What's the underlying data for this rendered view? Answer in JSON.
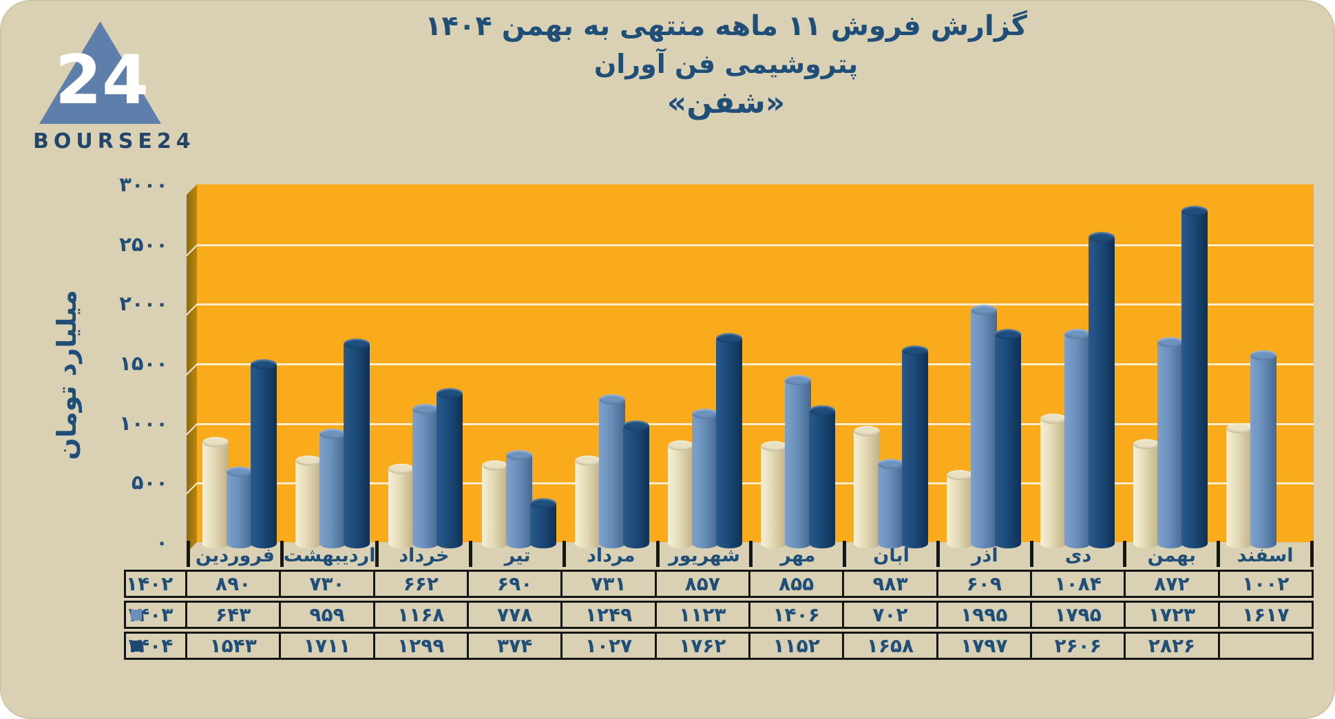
{
  "page": {
    "background": "#DAD0B3",
    "accent_orange": "#F9AB1C",
    "text_navy": "#1F4E78"
  },
  "header": {
    "logo_text": "BOURSE24",
    "logo_number": "24",
    "title_line1": "گزارش  فروش ۱۱ ماهه منتهی به بهمن ۱۴۰۴",
    "title_line2": "پتروشیمی فن آوران",
    "title_line3": "«شفن»"
  },
  "chart_data": {
    "type": "bar",
    "subtype": "3d-cylinder",
    "title": "گزارش فروش ۱۱ ماهه منتهی به بهمن ۱۴۰۴ پتروشیمی فن آوران «شفن»",
    "ylabel": "میلیارد تومان",
    "ylim": [
      0,
      3000
    ],
    "grid": true,
    "legend_position": "table-left",
    "plot_background": "#F9AB1C",
    "wall_color": "#A87C10",
    "gridline_color": "#FAF0D8",
    "y_ticks": [
      {
        "label": "۰",
        "value": 0
      },
      {
        "label": "۵۰۰",
        "value": 500
      },
      {
        "label": "۱۰۰۰",
        "value": 1000
      },
      {
        "label": "۱۵۰۰",
        "value": 1500
      },
      {
        "label": "۲۰۰۰",
        "value": 2000
      },
      {
        "label": "۲۵۰۰",
        "value": 2500
      },
      {
        "label": "۳۰۰۰",
        "value": 3000
      }
    ],
    "categories": [
      "فروردین",
      "اردیبهشت",
      "خرداد",
      "تیر",
      "مرداد",
      "شهریور",
      "مهر",
      "آبان",
      "آذر",
      "دی",
      "بهمن",
      "اسفند"
    ],
    "series": [
      {
        "name": "۱۴۰۲",
        "year": 1402,
        "legend_swatch": null,
        "body_colors": [
          "#F5F0D8",
          "#E3D9B4",
          "#BFB089"
        ],
        "top_color": "#E9E1C1",
        "values": [
          890,
          730,
          662,
          690,
          731,
          857,
          855,
          983,
          609,
          1084,
          872,
          1002
        ],
        "labels": [
          "۸۹۰",
          "۷۳۰",
          "۶۶۲",
          "۶۹۰",
          "۷۳۱",
          "۸۵۷",
          "۸۵۵",
          "۹۸۳",
          "۶۰۹",
          "۱۰۸۴",
          "۸۷۲",
          "۱۰۰۲"
        ]
      },
      {
        "name": "۱۴۰۳",
        "year": 1403,
        "legend_swatch": "#6E8FB9",
        "body_colors": [
          "#7FA0C9",
          "#6990BC",
          "#46688F"
        ],
        "top_color": "#6E93BF",
        "values": [
          643,
          959,
          1168,
          778,
          1249,
          1123,
          1406,
          702,
          1995,
          1795,
          1723,
          1617
        ],
        "labels": [
          "۶۴۳",
          "۹۵۹",
          "۱۱۶۸",
          "۷۷۸",
          "۱۲۴۹",
          "۱۱۲۳",
          "۱۴۰۶",
          "۷۰۲",
          "۱۹۹۵",
          "۱۷۹۵",
          "۱۷۲۳",
          "۱۶۱۷"
        ]
      },
      {
        "name": "۱۴۰۴",
        "year": 1404,
        "legend_swatch": "#1C4673",
        "body_colors": [
          "#2A5A8A",
          "#1C4A7A",
          "#0F3154"
        ],
        "top_color": "#1F4F7E",
        "values": [
          1543,
          1711,
          1299,
          374,
          1027,
          1762,
          1152,
          1658,
          1797,
          2606,
          2826,
          null
        ],
        "labels": [
          "۱۵۴۳",
          "۱۷۱۱",
          "۱۲۹۹",
          "۳۷۴",
          "۱۰۲۷",
          "۱۷۶۲",
          "۱۱۵۲",
          "۱۶۵۸",
          "۱۷۹۷",
          "۲۶۰۶",
          "۲۸۲۶",
          ""
        ]
      }
    ]
  }
}
